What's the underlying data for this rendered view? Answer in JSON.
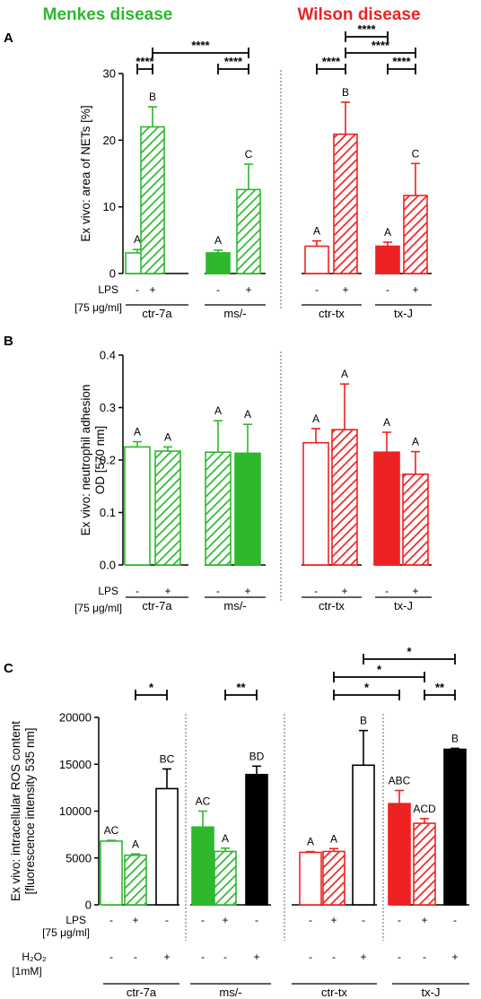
{
  "headers": {
    "menkes": "Menkes disease",
    "wilson": "Wilson disease",
    "menkes_color": "#2db82d",
    "wilson_color": "#ee2222"
  },
  "colors": {
    "green": "#2db82d",
    "red": "#ee2222",
    "black": "#000000"
  },
  "chart_data": [
    {
      "panel": "A",
      "type": "bar",
      "ylabel": "Ex vivo: area of NETs [%]",
      "ylim": [
        0,
        30
      ],
      "yticks": [
        0,
        10,
        20,
        30
      ],
      "lps_label": "LPS",
      "lps_unit": "[75 μg/ml]",
      "lps_signs": [
        "-",
        "+",
        "-",
        "+",
        "-",
        "+",
        "-",
        "+"
      ],
      "group_labels": [
        "ctr-7a",
        "ms/-",
        "ctr-tx",
        "tx-J"
      ],
      "bars": [
        {
          "value": 3.1,
          "error": 0.5,
          "color": "green",
          "fill": "empty",
          "letter": "A"
        },
        {
          "value": 22.0,
          "error": 3.0,
          "color": "green",
          "fill": "hatched",
          "letter": "B"
        },
        {
          "value": 3.1,
          "error": 0.4,
          "color": "green",
          "fill": "solid",
          "letter": "A"
        },
        {
          "value": 12.6,
          "error": 3.8,
          "color": "green",
          "fill": "hatched",
          "letter": "C"
        },
        {
          "value": 4.1,
          "error": 0.8,
          "color": "red",
          "fill": "empty",
          "letter": "A"
        },
        {
          "value": 20.9,
          "error": 4.8,
          "color": "red",
          "fill": "hatched",
          "letter": "B"
        },
        {
          "value": 4.1,
          "error": 0.6,
          "color": "red",
          "fill": "solid",
          "letter": "A"
        },
        {
          "value": 11.7,
          "error": 4.8,
          "color": "red",
          "fill": "hatched",
          "letter": "C"
        }
      ],
      "significance": [
        {
          "from": 0,
          "to": 1,
          "label": "****",
          "level": 1
        },
        {
          "from": 2,
          "to": 3,
          "label": "****",
          "level": 1
        },
        {
          "from": 1,
          "to": 3,
          "label": "****",
          "level": 2
        },
        {
          "from": 4,
          "to": 5,
          "label": "****",
          "level": 1
        },
        {
          "from": 6,
          "to": 7,
          "label": "****",
          "level": 1
        },
        {
          "from": 5,
          "to": 7,
          "label": "****",
          "level": 2
        },
        {
          "from": 5,
          "to": 6,
          "label": "****",
          "level": 3
        }
      ]
    },
    {
      "panel": "B",
      "type": "bar",
      "ylabel": "Ex vivo: neutrophil adhesion",
      "ylabel2": "OD [570 nm]",
      "ylim": [
        0,
        0.4
      ],
      "yticks": [
        "0.0",
        "0.1",
        "0.2",
        "0.3",
        "0.4"
      ],
      "lps_label": "LPS",
      "lps_unit": "[75 μg/ml]",
      "lps_signs": [
        "-",
        "+",
        "-",
        "+",
        "-",
        "+",
        "-",
        "+"
      ],
      "group_labels": [
        "ctr-7a",
        "ms/-",
        "ctr-tx",
        "tx-J"
      ],
      "bars": [
        {
          "value": 0.225,
          "error": 0.01,
          "color": "green",
          "fill": "empty",
          "letter": "A"
        },
        {
          "value": 0.217,
          "error": 0.008,
          "color": "green",
          "fill": "hatched",
          "letter": "A"
        },
        {
          "value": 0.215,
          "error": 0.06,
          "color": "green",
          "fill": "hatched",
          "letter": "A"
        },
        {
          "value": 0.213,
          "error": 0.055,
          "color": "green",
          "fill": "solid",
          "letter": "A"
        },
        {
          "value": 0.233,
          "error": 0.027,
          "color": "red",
          "fill": "empty",
          "letter": "A"
        },
        {
          "value": 0.258,
          "error": 0.087,
          "color": "red",
          "fill": "hatched",
          "letter": "A"
        },
        {
          "value": 0.215,
          "error": 0.038,
          "color": "red",
          "fill": "solid",
          "letter": "A"
        },
        {
          "value": 0.173,
          "error": 0.043,
          "color": "red",
          "fill": "hatched",
          "letter": "A"
        }
      ],
      "significance": []
    },
    {
      "panel": "C",
      "type": "bar",
      "ylabel": "Ex vivo: intracellular ROS content",
      "ylabel2": "[fluorescence intensity 535 nm]",
      "ylim": [
        0,
        20000
      ],
      "yticks": [
        0,
        5000,
        10000,
        15000,
        20000
      ],
      "lps_label": "LPS",
      "lps_unit": "[75 μg/ml]",
      "lps_signs": [
        "-",
        "+",
        "-",
        "-",
        "+",
        "-",
        "-",
        "+",
        "-",
        "-",
        "+",
        "-"
      ],
      "h2o2_label": "H₂O₂",
      "h2o2_unit": "[1mM]",
      "h2o2_signs": [
        "-",
        "-",
        "+",
        "-",
        "-",
        "+",
        "-",
        "-",
        "+",
        "-",
        "-",
        "+"
      ],
      "group_labels": [
        "ctr-7a",
        "ms/-",
        "ctr-tx",
        "tx-J"
      ],
      "bars": [
        {
          "value": 6800,
          "error": 80,
          "color": "green",
          "fill": "empty",
          "letter": "AC"
        },
        {
          "value": 5300,
          "error": 130,
          "color": "green",
          "fill": "hatched",
          "letter": "A"
        },
        {
          "value": 12400,
          "error": 2100,
          "color": "black",
          "fill": "empty",
          "letter": "BC"
        },
        {
          "value": 8300,
          "error": 1700,
          "color": "green",
          "fill": "solid",
          "letter": "AC"
        },
        {
          "value": 5700,
          "error": 350,
          "color": "green",
          "fill": "hatched",
          "letter": "A"
        },
        {
          "value": 13900,
          "error": 900,
          "color": "black",
          "fill": "solid",
          "letter": "BD"
        },
        {
          "value": 5600,
          "error": 80,
          "color": "red",
          "fill": "empty",
          "letter": "A"
        },
        {
          "value": 5700,
          "error": 300,
          "color": "red",
          "fill": "hatched",
          "letter": "A"
        },
        {
          "value": 14900,
          "error": 3700,
          "color": "black",
          "fill": "empty",
          "letter": "B"
        },
        {
          "value": 10800,
          "error": 1400,
          "color": "red",
          "fill": "solid",
          "letter": "ABC"
        },
        {
          "value": 8700,
          "error": 500,
          "color": "red",
          "fill": "hatched",
          "letter": "ACD"
        },
        {
          "value": 16600,
          "error": 100,
          "color": "black",
          "fill": "solid",
          "letter": "B"
        }
      ],
      "significance": [
        {
          "from": 1,
          "to": 2,
          "label": "*",
          "level": 1
        },
        {
          "from": 4,
          "to": 5,
          "label": "**",
          "level": 1
        },
        {
          "from": 7,
          "to": 9,
          "label": "*",
          "level": 1
        },
        {
          "from": 10,
          "to": 11,
          "label": "**",
          "level": 1
        },
        {
          "from": 7,
          "to": 10,
          "label": "*",
          "level": 2
        },
        {
          "from": 8,
          "to": 11,
          "label": "*",
          "level": 3
        }
      ]
    }
  ]
}
